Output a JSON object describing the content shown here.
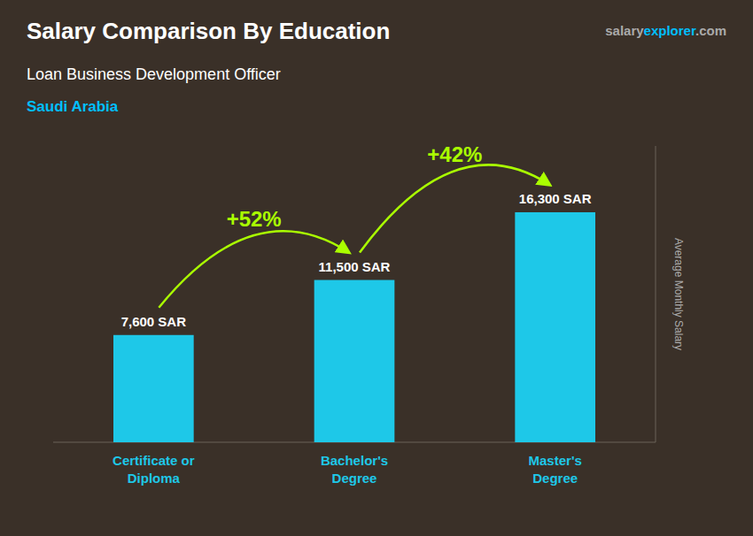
{
  "chart_data": {
    "type": "bar",
    "title": "Salary Comparison By Education",
    "subtitle": "Loan Business Development Officer",
    "country": "Saudi Arabia",
    "country_color": "#00BFFF",
    "watermark": [
      {
        "text": "salary",
        "color": "#AAAAAA"
      },
      {
        "text": "explorer",
        "color": "#00BFFF"
      },
      {
        "text": ".com",
        "color": "#AAAAAA"
      }
    ],
    "categories": [
      "Certificate or\nDiploma",
      "Bachelor's\nDegree",
      "Master's\nDegree"
    ],
    "values": [
      7600,
      11500,
      16300
    ],
    "value_labels": [
      "7,600 SAR",
      "11,500 SAR",
      "16,300 SAR"
    ],
    "data_labels": true,
    "color": "#1EC8E8",
    "annotations": [
      "+52%",
      "+42%"
    ],
    "annotation_color": "#AAFF00",
    "ylabel": "Average Monthly Salary",
    "ylabel_color": "#AAAAAA",
    "background_color": "#3a3028",
    "ylim": [
      0,
      21000
    ],
    "tick_labels": "x",
    "grid": false
  }
}
